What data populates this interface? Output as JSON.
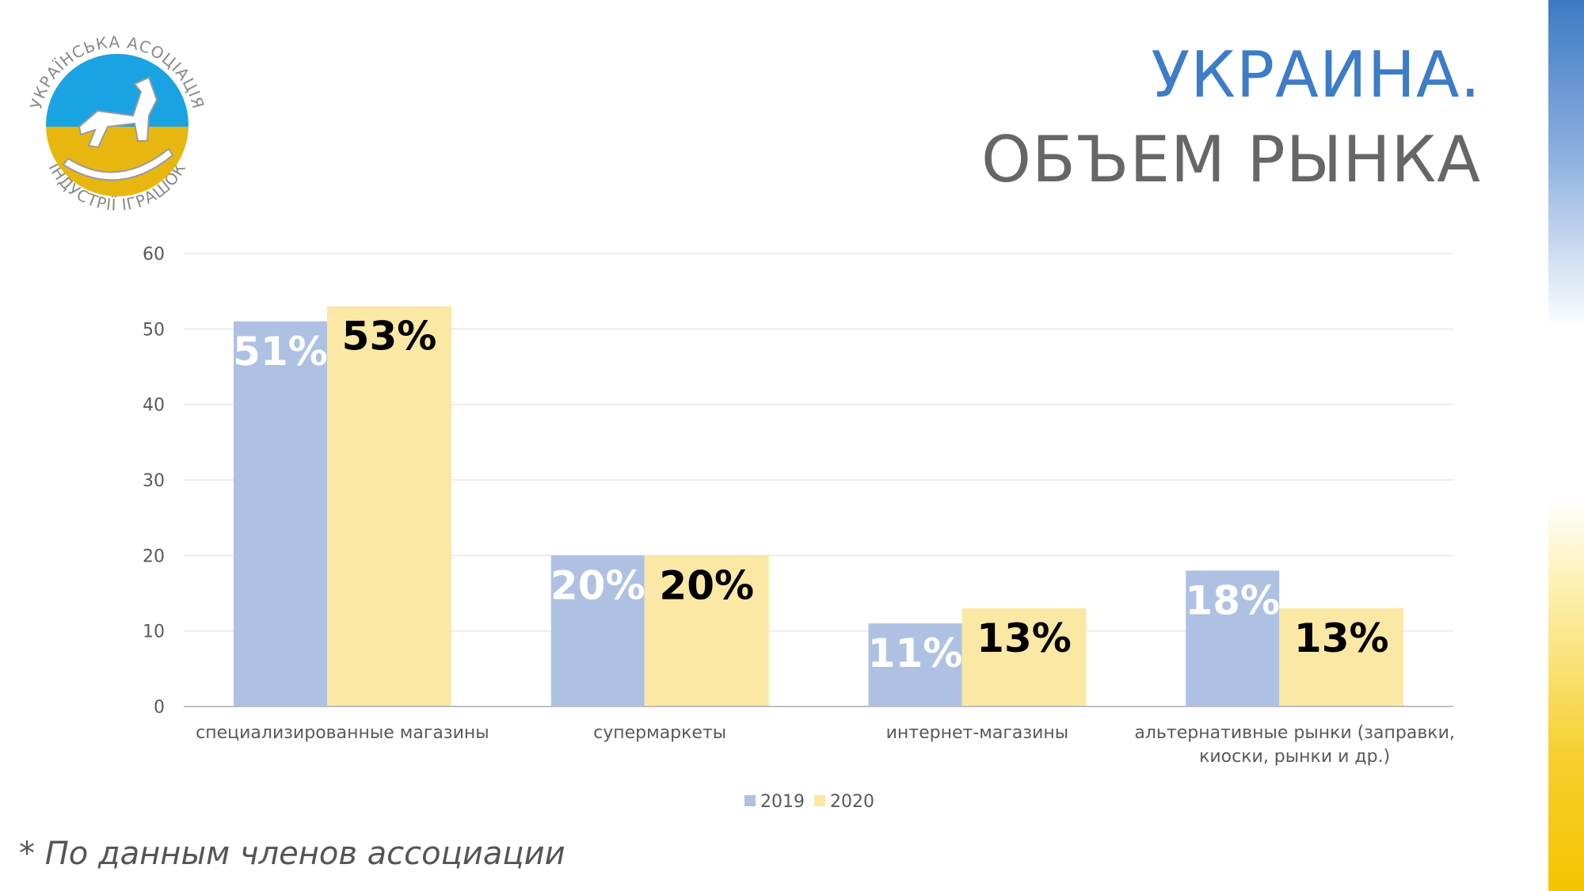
{
  "header": {
    "title_line1": "УКРАИНА.",
    "title_line2": "ОБЪЕМ РЫНКА"
  },
  "logo": {
    "text_top": "УКРАЇНСЬКА АСОЦІАЦІЯ",
    "text_bottom": "ІНДУСТРІЇ ІГРАШОК",
    "icon": "rocking-horse-icon"
  },
  "footnote": "* По данным членов ассоциации",
  "colors": {
    "series_2019": "#aec1e3",
    "series_2020": "#fae8a4",
    "title_blue": "#3d7cc7",
    "title_gray": "#666666"
  },
  "chart_data": {
    "type": "bar",
    "categories": [
      [
        "специализированные магазины"
      ],
      [
        "супермаркеты"
      ],
      [
        "интернет-магазины"
      ],
      [
        "альтернативные рынки (заправки,",
        "киоски, рынки и др.)"
      ]
    ],
    "series": [
      {
        "name": "2019",
        "values": [
          51,
          20,
          11,
          18
        ],
        "labels": [
          "51%",
          "20%",
          "11%",
          "18%"
        ]
      },
      {
        "name": "2020",
        "values": [
          53,
          20,
          13,
          13
        ],
        "labels": [
          "53%",
          "20%",
          "13%",
          "13%"
        ]
      }
    ],
    "ylim": [
      0,
      60
    ],
    "yticks": [
      0,
      10,
      20,
      30,
      40,
      50,
      60
    ],
    "grid": true,
    "legend": "bottom"
  }
}
